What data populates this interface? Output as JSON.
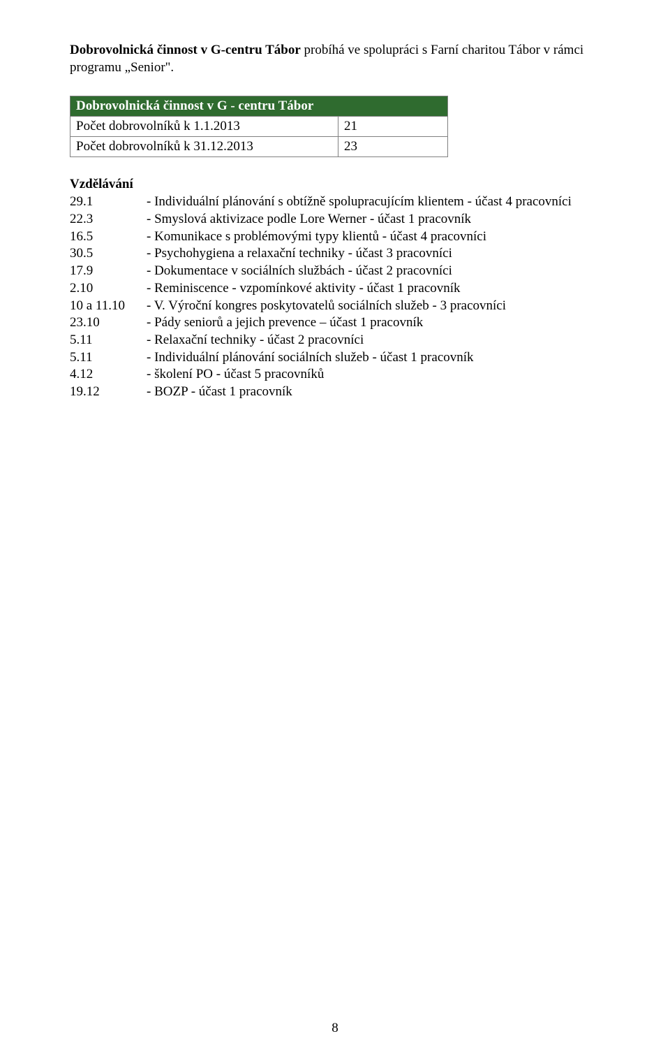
{
  "intro": {
    "bold_lead": "Dobrovolnická činnost v G-centru Tábor",
    "rest": " probíhá ve spolupráci s Farní charitou Tábor v rámci programu „Senior\"."
  },
  "table": {
    "title": "Dobrovolnická činnost v G - centru Tábor",
    "rows": [
      {
        "label": "Počet dobrovolníků k 1.1.2013",
        "value": "21"
      },
      {
        "label": "Počet dobrovolníků k 31.12.2013",
        "value": "23"
      }
    ]
  },
  "section_title": "Vzdělávání",
  "training": [
    {
      "date": "29.1",
      "desc": "- Individuální plánování s obtížně spolupracujícím klientem - účast 4 pracovníci"
    },
    {
      "date": "22.3",
      "desc": "- Smyslová aktivizace podle Lore Werner - účast 1 pracovník"
    },
    {
      "date": "16.5",
      "desc": "- Komunikace s problémovými typy klientů - účast 4 pracovníci"
    },
    {
      "date": "30.5",
      "desc": "- Psychohygiena a relaxační techniky - účast 3 pracovníci"
    },
    {
      "date": "17.9",
      "desc": "- Dokumentace v sociálních službách - účast 2 pracovníci"
    },
    {
      "date": "2.10",
      "desc": "- Reminiscence - vzpomínkové aktivity - účast 1 pracovník"
    },
    {
      "date": "10 a 11.10",
      "desc": "- V. Výroční kongres poskytovatelů sociálních služeb - 3 pracovníci"
    },
    {
      "date": "23.10",
      "desc": "- Pády seniorů a jejich prevence – účast 1 pracovník"
    },
    {
      "date": "5.11",
      "desc": "- Relaxační techniky - účast 2 pracovníci"
    },
    {
      "date": "5.11",
      "desc": "- Individuální plánování sociálních služeb - účast 1 pracovník"
    },
    {
      "date": "4.12",
      "desc": "- školení PO - účast 5 pracovníků"
    },
    {
      "date": "19.12",
      "desc": "- BOZP - účast 1 pracovník"
    }
  ],
  "page_number": "8"
}
